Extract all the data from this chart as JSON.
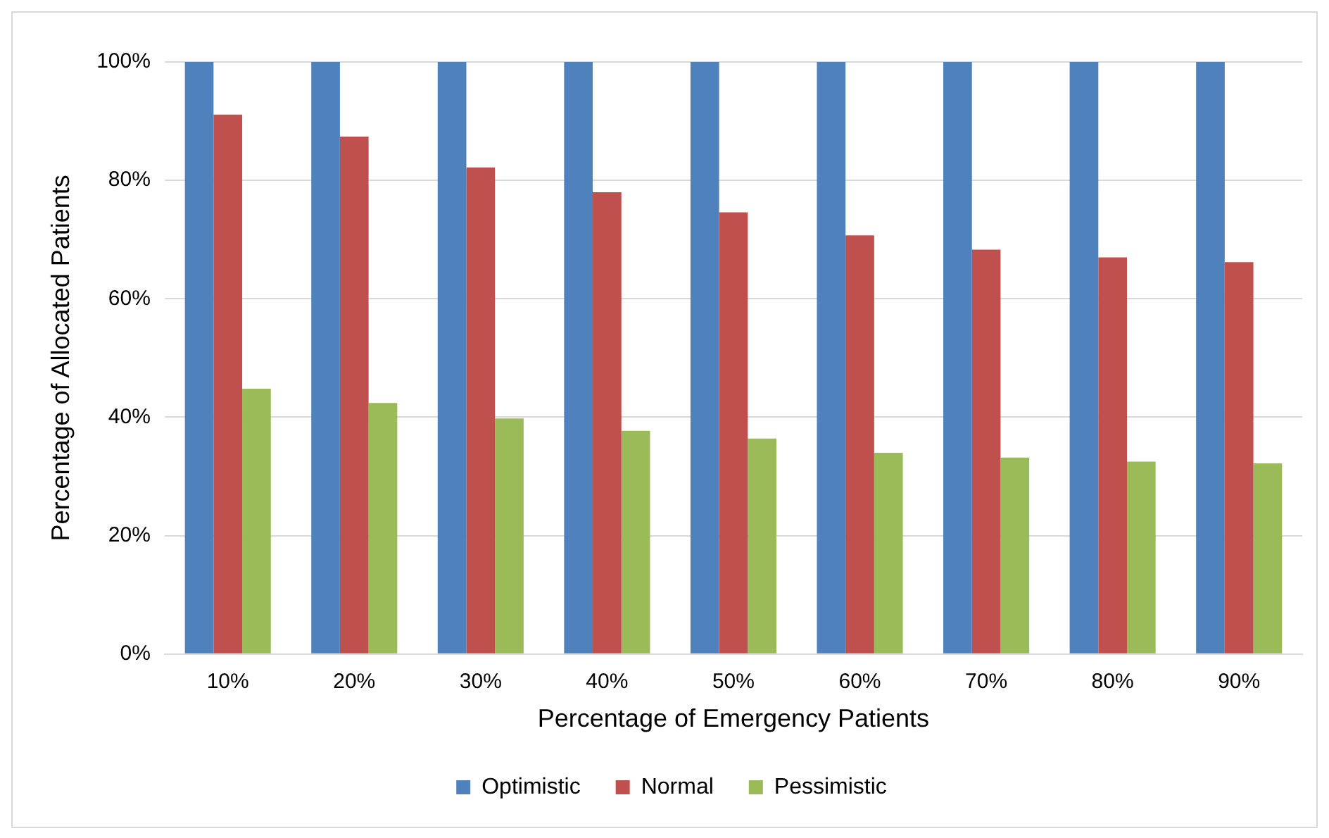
{
  "chart_data": {
    "type": "bar",
    "xlabel": "Percentage of Emergency Patients",
    "ylabel": "Percentage of Allocated Patients",
    "categories": [
      "10%",
      "20%",
      "30%",
      "40%",
      "50%",
      "60%",
      "70%",
      "80%",
      "90%"
    ],
    "series": [
      {
        "name": "Optimistic",
        "color": "#4f81bd",
        "values": [
          100,
          100,
          100,
          100,
          100,
          100,
          100,
          100,
          100
        ]
      },
      {
        "name": "Normal",
        "color": "#c0504d",
        "values": [
          91.1,
          87.4,
          82.2,
          78.0,
          74.6,
          70.7,
          68.3,
          67.0,
          66.2
        ]
      },
      {
        "name": "Pessimistic",
        "color": "#9bbb59",
        "values": [
          44.8,
          42.4,
          39.8,
          37.7,
          36.4,
          34.0,
          33.2,
          32.5,
          32.2
        ]
      }
    ],
    "ylim": [
      0,
      100
    ],
    "yticks": [
      {
        "value": 0,
        "label": "0%"
      },
      {
        "value": 20,
        "label": "20%"
      },
      {
        "value": 40,
        "label": "40%"
      },
      {
        "value": 60,
        "label": "60%"
      },
      {
        "value": 80,
        "label": "80%"
      },
      {
        "value": 100,
        "label": "100%"
      }
    ],
    "grid": "y",
    "legend": "bottom"
  }
}
